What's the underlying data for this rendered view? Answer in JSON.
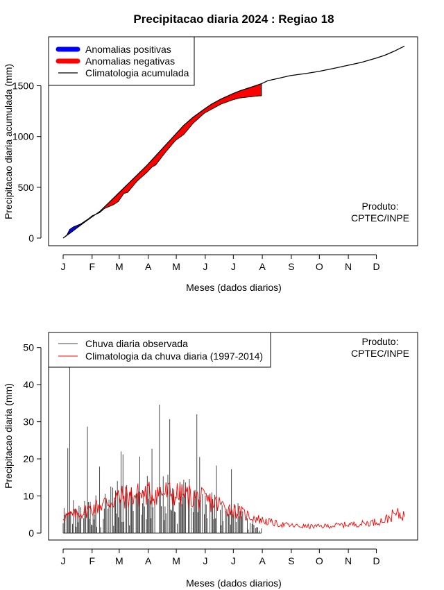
{
  "page_title": "Precipitacao diaria 2024 : Regiao 18",
  "chart_data": [
    {
      "type": "area",
      "title": "Precipitacao diaria 2024 : Regiao 18",
      "xlabel": "Meses (dados diarios)",
      "ylabel": "Precipitacao diaria acumulada (mm)",
      "x_ticks": [
        "J",
        "F",
        "M",
        "A",
        "M",
        "J",
        "J",
        "A",
        "S",
        "O",
        "N",
        "D"
      ],
      "y_ticks": [
        0,
        500,
        1000,
        1500
      ],
      "xlim": [
        1,
        366
      ],
      "ylim": [
        0,
        1900
      ],
      "legend": {
        "position": "top-left",
        "entries": [
          {
            "label": "Anomalias positivas",
            "color": "#0000ff"
          },
          {
            "label": "Anomalias negativas",
            "color": "#ff0000"
          },
          {
            "label": "Climatologia acumulada",
            "color": "#000000"
          }
        ]
      },
      "annotation": {
        "line1": "Produto:",
        "line2": "CPTEC/INPE",
        "position": "bottom-right"
      },
      "climatology_cumulative": {
        "days": [
          1,
          10,
          20,
          32,
          40,
          50,
          60,
          70,
          80,
          91,
          100,
          110,
          121,
          130,
          140,
          152,
          160,
          170,
          182,
          190,
          200,
          213,
          220,
          230,
          244,
          260,
          274,
          290,
          305,
          320,
          335,
          345,
          355,
          366
        ],
        "values": [
          0,
          60,
          130,
          210,
          260,
          350,
          440,
          530,
          620,
          720,
          810,
          910,
          1020,
          1110,
          1190,
          1270,
          1320,
          1370,
          1420,
          1450,
          1480,
          1520,
          1550,
          1570,
          1600,
          1620,
          1640,
          1670,
          1700,
          1730,
          1770,
          1800,
          1840,
          1890
        ]
      },
      "observed_cumulative": {
        "days": [
          1,
          5,
          8,
          12,
          20,
          28,
          32,
          36,
          40,
          45,
          50,
          55,
          60,
          66,
          70,
          80,
          91,
          96,
          100,
          110,
          121,
          130,
          140,
          152,
          160,
          170,
          182,
          190,
          200,
          210,
          213
        ],
        "values": [
          0,
          30,
          85,
          110,
          140,
          190,
          220,
          235,
          250,
          290,
          310,
          330,
          360,
          440,
          450,
          560,
          650,
          700,
          720,
          840,
          960,
          1020,
          1130,
          1230,
          1270,
          1320,
          1360,
          1380,
          1390,
          1400,
          1400
        ]
      }
    },
    {
      "type": "line",
      "xlabel": "Meses (dados diarios)",
      "ylabel": "Precipitacao diaria (mm)",
      "x_ticks": [
        "J",
        "F",
        "M",
        "A",
        "M",
        "J",
        "J",
        "A",
        "S",
        "O",
        "N",
        "D"
      ],
      "y_ticks": [
        0,
        10,
        20,
        30,
        40,
        50
      ],
      "xlim": [
        1,
        366
      ],
      "ylim": [
        0,
        52
      ],
      "legend": {
        "position": "top-left",
        "entries": [
          {
            "label": "Chuva diaria observada",
            "color": "#000000"
          },
          {
            "label": "Climatologia da chuva diaria (1997-2014)",
            "color": "#ff0000"
          }
        ]
      },
      "annotation": {
        "line1": "Produto:",
        "line2": "CPTEC/INPE",
        "position": "top-right"
      },
      "observed_daily_spikes": {
        "days": [
          6,
          8,
          12,
          27,
          40,
          63,
          65,
          83,
          96,
          104,
          115,
          121,
          144,
          147,
          165,
          181
        ],
        "values": [
          22.9,
          44.8,
          8.9,
          28.7,
          17.9,
          22,
          21.2,
          20.6,
          22.7,
          34.6,
          30.7,
          5.6,
          32,
          20.5,
          18.2,
          17.2
        ]
      },
      "observed_daily_last_day": 213,
      "climatology_daily": {
        "days": [
          1,
          15,
          30,
          45,
          60,
          75,
          90,
          105,
          120,
          135,
          150,
          165,
          180,
          195,
          213,
          230,
          245,
          260,
          275,
          290,
          305,
          320,
          335,
          345,
          355,
          360,
          366
        ],
        "values": [
          4.5,
          5,
          6.5,
          8,
          9.5,
          10,
          10.5,
          11,
          10.5,
          10,
          9,
          8,
          6.5,
          5,
          3.5,
          2.5,
          2,
          1.8,
          1.8,
          2,
          2.3,
          2.5,
          3,
          3.5,
          5,
          5,
          5
        ]
      }
    }
  ]
}
